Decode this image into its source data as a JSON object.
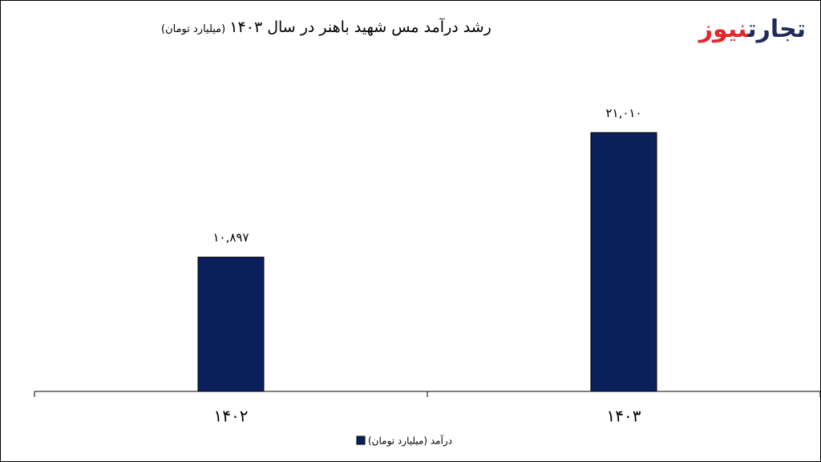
{
  "brand": [
    "تجارت",
    "نیوز"
  ],
  "chart_data": {
    "type": "bar",
    "title": "رشد درآمد مس شهید باهنر در سال ۱۴۰۳",
    "subtitle": "(میلیارد تومان)",
    "categories": [
      "۱۴۰۲",
      "۱۴۰۳"
    ],
    "series": [
      {
        "name": "درآمد (میلیارد تومان)",
        "color": "#0a1f5c",
        "values": [
          10897,
          21010
        ],
        "value_labels": [
          "۱۰,۸۹۷",
          "۲۱,۰۱۰"
        ]
      }
    ],
    "ylim": [
      0,
      25000
    ],
    "grid": false,
    "legend": "bottom"
  }
}
